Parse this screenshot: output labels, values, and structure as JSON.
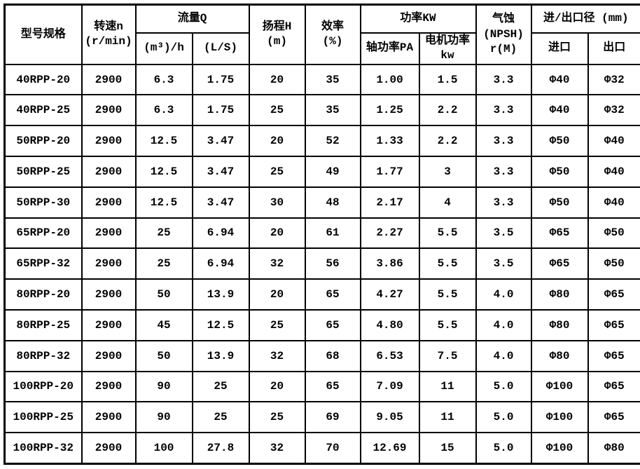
{
  "colors": {
    "border": "#000000",
    "background": "#ffffff",
    "text": "#000000"
  },
  "chart_data": {
    "type": "table",
    "header": {
      "model": "型号规格",
      "speed": "转速n\n(r/min)",
      "flow_group": "流量Q",
      "flow_m3h": "(m³)/h",
      "flow_ls": "(L/S)",
      "head": "扬程H\n(m)",
      "efficiency": "效率\n(%)",
      "power_group": "功率KW",
      "power_shaft": "轴功率PA",
      "power_motor": "电机功率\nkw",
      "npsh": "气蚀\n(NPSH)\nr(M)",
      "port_group": "进/出口径 (mm)",
      "port_inlet": "进口",
      "port_outlet": "出口"
    },
    "rows": [
      [
        "40RPP-20",
        "2900",
        "6.3",
        "1.75",
        "20",
        "35",
        "1.00",
        "1.5",
        "3.3",
        "Φ40",
        "Φ32"
      ],
      [
        "40RPP-25",
        "2900",
        "6.3",
        "1.75",
        "25",
        "35",
        "1.25",
        "2.2",
        "3.3",
        "Φ40",
        "Φ32"
      ],
      [
        "50RPP-20",
        "2900",
        "12.5",
        "3.47",
        "20",
        "52",
        "1.33",
        "2.2",
        "3.3",
        "Φ50",
        "Φ40"
      ],
      [
        "50RPP-25",
        "2900",
        "12.5",
        "3.47",
        "25",
        "49",
        "1.77",
        "3",
        "3.3",
        "Φ50",
        "Φ40"
      ],
      [
        "50RPP-30",
        "2900",
        "12.5",
        "3.47",
        "30",
        "48",
        "2.17",
        "4",
        "3.3",
        "Φ50",
        "Φ40"
      ],
      [
        "65RPP-20",
        "2900",
        "25",
        "6.94",
        "20",
        "61",
        "2.27",
        "5.5",
        "3.5",
        "Φ65",
        "Φ50"
      ],
      [
        "65RPP-32",
        "2900",
        "25",
        "6.94",
        "32",
        "56",
        "3.86",
        "5.5",
        "3.5",
        "Φ65",
        "Φ50"
      ],
      [
        "80RPP-20",
        "2900",
        "50",
        "13.9",
        "20",
        "65",
        "4.27",
        "5.5",
        "4.0",
        "Φ80",
        "Φ65"
      ],
      [
        "80RPP-25",
        "2900",
        "45",
        "12.5",
        "25",
        "65",
        "4.80",
        "5.5",
        "4.0",
        "Φ80",
        "Φ65"
      ],
      [
        "80RPP-32",
        "2900",
        "50",
        "13.9",
        "32",
        "68",
        "6.53",
        "7.5",
        "4.0",
        "Φ80",
        "Φ65"
      ],
      [
        "100RPP-20",
        "2900",
        "90",
        "25",
        "20",
        "65",
        "7.09",
        "11",
        "5.0",
        "Φ100",
        "Φ65"
      ],
      [
        "100RPP-25",
        "2900",
        "90",
        "25",
        "25",
        "69",
        "9.05",
        "11",
        "5.0",
        "Φ100",
        "Φ65"
      ],
      [
        "100RPP-32",
        "2900",
        "100",
        "27.8",
        "32",
        "70",
        "12.69",
        "15",
        "5.0",
        "Φ100",
        "Φ80"
      ]
    ]
  }
}
